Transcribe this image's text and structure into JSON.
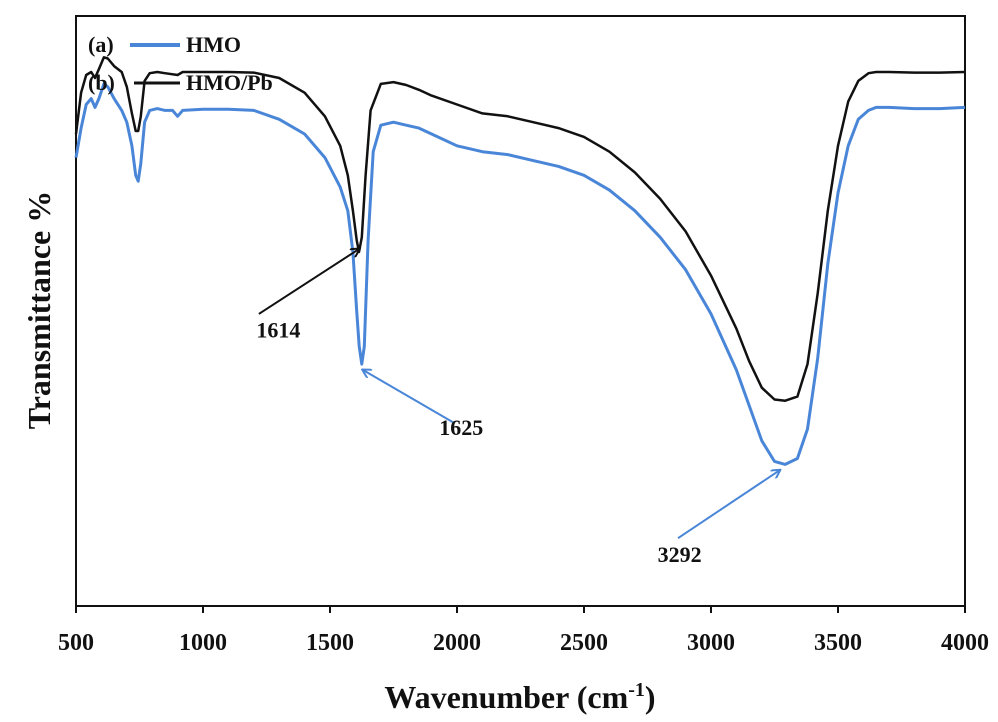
{
  "chart_data": {
    "type": "line",
    "title": "",
    "xlabel": "Wavenumber (cm",
    "xlabel_sup": "-1",
    "xlabel_close": ")",
    "ylabel": "Transmittance %",
    "xlim": [
      500,
      4000
    ],
    "ylim": [
      0,
      100
    ],
    "x_ticks": [
      500,
      1000,
      1500,
      2000,
      2500,
      3000,
      3500,
      4000
    ],
    "x_tick_labels": [
      "500",
      "1000",
      "1500",
      "2000",
      "2500",
      "3000",
      "3500",
      "4000"
    ],
    "grid": false,
    "legend_position": "top-left",
    "series": [
      {
        "name": "HMO",
        "tag": "(a)",
        "color": "#4a86d8",
        "points": [
          [
            500,
            76
          ],
          [
            520,
            81
          ],
          [
            540,
            85
          ],
          [
            560,
            86
          ],
          [
            575,
            84.5
          ],
          [
            590,
            86
          ],
          [
            610,
            88.5
          ],
          [
            625,
            88
          ],
          [
            650,
            86
          ],
          [
            680,
            84
          ],
          [
            700,
            82
          ],
          [
            720,
            78
          ],
          [
            735,
            73
          ],
          [
            745,
            72
          ],
          [
            755,
            75
          ],
          [
            770,
            82
          ],
          [
            790,
            84
          ],
          [
            820,
            84.3
          ],
          [
            850,
            84
          ],
          [
            880,
            84
          ],
          [
            900,
            83
          ],
          [
            920,
            84
          ],
          [
            1000,
            84.2
          ],
          [
            1100,
            84.2
          ],
          [
            1200,
            84
          ],
          [
            1300,
            82.5
          ],
          [
            1400,
            80
          ],
          [
            1480,
            76
          ],
          [
            1540,
            71
          ],
          [
            1570,
            67
          ],
          [
            1590,
            60
          ],
          [
            1605,
            50
          ],
          [
            1615,
            44
          ],
          [
            1625,
            41
          ],
          [
            1635,
            44
          ],
          [
            1650,
            62
          ],
          [
            1670,
            77
          ],
          [
            1700,
            81.5
          ],
          [
            1750,
            82
          ],
          [
            1800,
            81.5
          ],
          [
            1850,
            81
          ],
          [
            1900,
            80
          ],
          [
            2000,
            78
          ],
          [
            2100,
            77
          ],
          [
            2200,
            76.5
          ],
          [
            2300,
            75.5
          ],
          [
            2400,
            74.5
          ],
          [
            2500,
            73
          ],
          [
            2600,
            70.5
          ],
          [
            2700,
            67
          ],
          [
            2800,
            62.5
          ],
          [
            2900,
            57
          ],
          [
            3000,
            49.5
          ],
          [
            3100,
            40
          ],
          [
            3150,
            34
          ],
          [
            3200,
            28
          ],
          [
            3250,
            24.5
          ],
          [
            3292,
            24
          ],
          [
            3340,
            25
          ],
          [
            3380,
            30
          ],
          [
            3420,
            42
          ],
          [
            3460,
            58
          ],
          [
            3500,
            70
          ],
          [
            3540,
            78
          ],
          [
            3580,
            82.5
          ],
          [
            3620,
            84
          ],
          [
            3650,
            84.5
          ],
          [
            3700,
            84.5
          ],
          [
            3800,
            84.3
          ],
          [
            3900,
            84.3
          ],
          [
            4000,
            84.5
          ]
        ]
      },
      {
        "name": "HMO/Pb",
        "tag": "(b)",
        "color": "#111111",
        "points": [
          [
            500,
            80
          ],
          [
            520,
            87
          ],
          [
            540,
            90
          ],
          [
            560,
            90.5
          ],
          [
            575,
            89.5
          ],
          [
            590,
            91
          ],
          [
            610,
            93
          ],
          [
            625,
            92.8
          ],
          [
            650,
            91.5
          ],
          [
            680,
            90.5
          ],
          [
            700,
            88
          ],
          [
            720,
            83.5
          ],
          [
            735,
            80.5
          ],
          [
            745,
            80.5
          ],
          [
            755,
            83
          ],
          [
            770,
            89
          ],
          [
            790,
            90.3
          ],
          [
            820,
            90.5
          ],
          [
            850,
            90.3
          ],
          [
            900,
            90
          ],
          [
            920,
            90.5
          ],
          [
            1000,
            90.5
          ],
          [
            1100,
            90.5
          ],
          [
            1200,
            90.4
          ],
          [
            1300,
            89.5
          ],
          [
            1400,
            87
          ],
          [
            1480,
            83
          ],
          [
            1540,
            78
          ],
          [
            1570,
            73
          ],
          [
            1590,
            67
          ],
          [
            1605,
            62
          ],
          [
            1614,
            60
          ],
          [
            1625,
            62.5
          ],
          [
            1640,
            73
          ],
          [
            1660,
            84
          ],
          [
            1700,
            88.5
          ],
          [
            1750,
            88.8
          ],
          [
            1800,
            88.3
          ],
          [
            1850,
            87.5
          ],
          [
            1900,
            86.5
          ],
          [
            2000,
            85
          ],
          [
            2100,
            83.5
          ],
          [
            2200,
            83
          ],
          [
            2300,
            82
          ],
          [
            2400,
            81
          ],
          [
            2500,
            79.5
          ],
          [
            2600,
            77
          ],
          [
            2700,
            73.5
          ],
          [
            2800,
            69
          ],
          [
            2900,
            63.5
          ],
          [
            3000,
            56
          ],
          [
            3100,
            47
          ],
          [
            3150,
            41.5
          ],
          [
            3200,
            37
          ],
          [
            3250,
            35
          ],
          [
            3292,
            34.8
          ],
          [
            3340,
            35.5
          ],
          [
            3380,
            41
          ],
          [
            3420,
            53
          ],
          [
            3460,
            67
          ],
          [
            3500,
            78
          ],
          [
            3540,
            85.5
          ],
          [
            3580,
            89
          ],
          [
            3620,
            90.3
          ],
          [
            3650,
            90.5
          ],
          [
            3700,
            90.5
          ],
          [
            3800,
            90.4
          ],
          [
            3900,
            90.4
          ],
          [
            4000,
            90.5
          ]
        ]
      }
    ],
    "annotations": [
      {
        "label": "1614",
        "color": "#111111",
        "tip_x": 1614,
        "tip_y": 60.5,
        "tail_x": 1220,
        "tail_y": 49.5,
        "text_x": 1210,
        "text_y": 45.5
      },
      {
        "label": "1625",
        "color": "#4a86d8",
        "tip_x": 1630,
        "tip_y": 40,
        "tail_x": 1990,
        "tail_y": 31,
        "text_x": 1930,
        "text_y": 29
      },
      {
        "label": "3292",
        "color": "#4a86d8",
        "tip_x": 3270,
        "tip_y": 23,
        "tail_x": 2870,
        "tail_y": 11.5,
        "text_x": 2790,
        "text_y": 7.5
      }
    ]
  }
}
